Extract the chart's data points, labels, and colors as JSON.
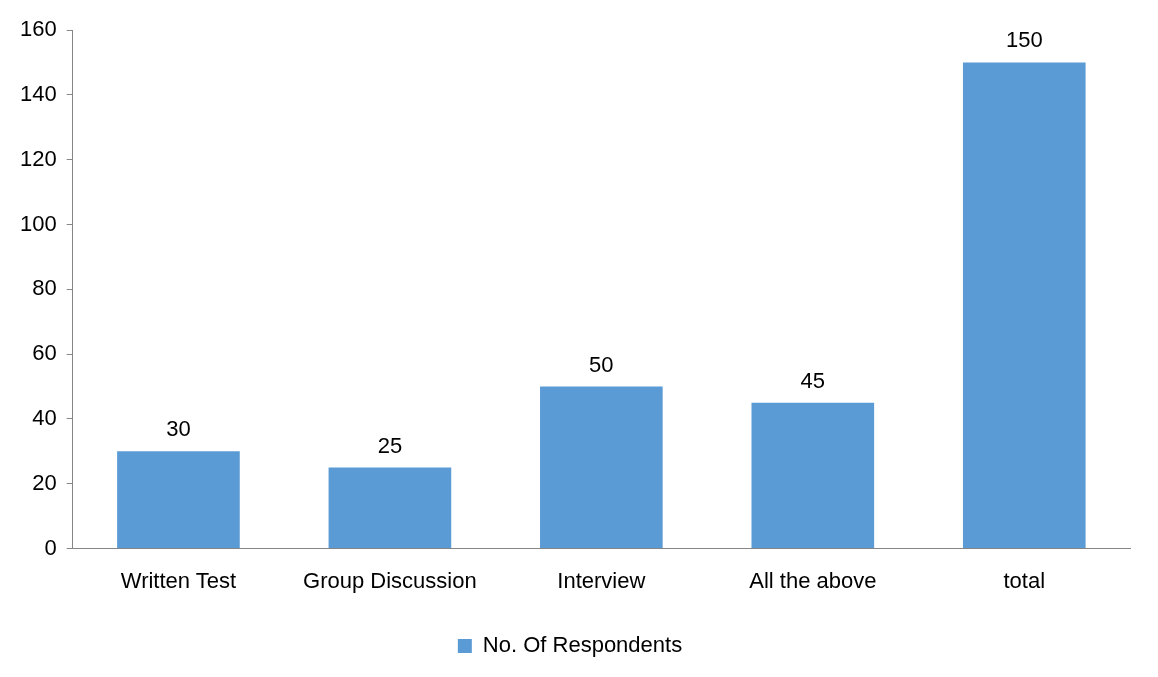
{
  "chart_data": {
    "type": "bar",
    "categories": [
      "Written Test",
      "Group Discussion",
      "Interview",
      "All the above",
      "total"
    ],
    "series": [
      {
        "name": "No. Of Respondents",
        "color": "#5b9bd5",
        "values": [
          30,
          25,
          50,
          45,
          150
        ]
      }
    ],
    "ylim": [
      0,
      160
    ],
    "yticks": [
      0,
      20,
      40,
      60,
      80,
      100,
      120,
      140,
      160
    ],
    "grid": false,
    "legend": "bottom",
    "data_labels": true
  }
}
